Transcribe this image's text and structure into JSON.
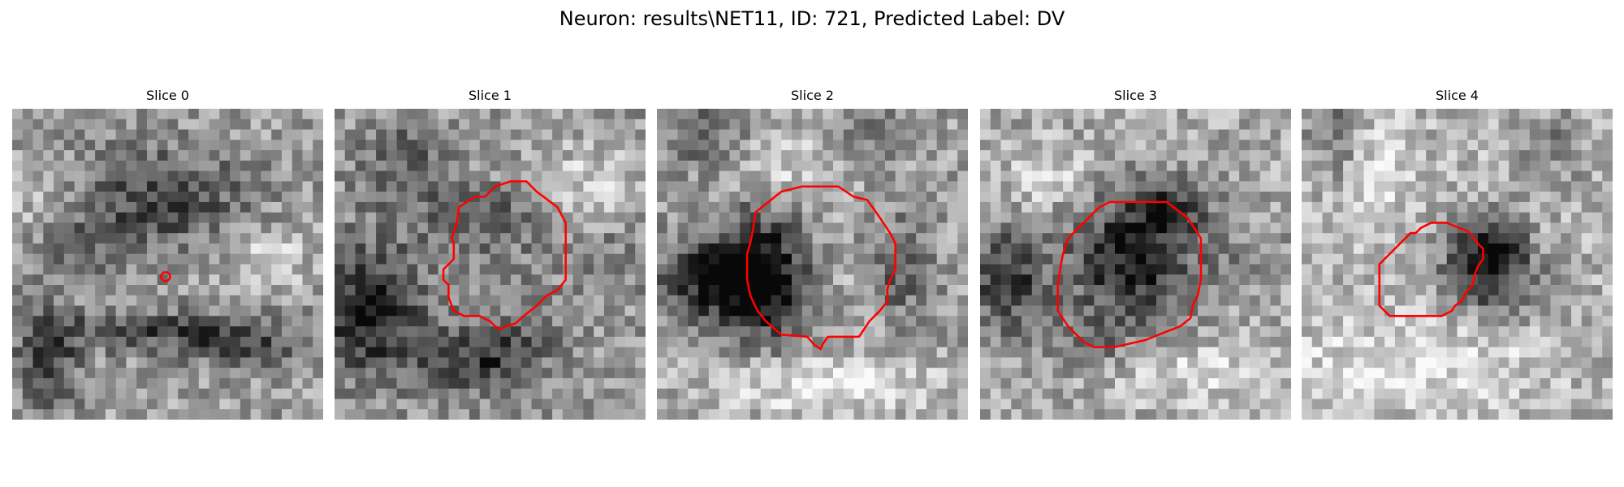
{
  "figure": {
    "title": "Neuron: results\\NET11, ID: 721, Predicted Label: DV",
    "colormap": "gray",
    "contour_color": "#ff0000"
  },
  "panels": [
    {
      "title": "Slice 0"
    },
    {
      "title": "Slice 1"
    },
    {
      "title": "Slice 2"
    },
    {
      "title": "Slice 3"
    },
    {
      "title": "Slice 4"
    }
  ]
}
